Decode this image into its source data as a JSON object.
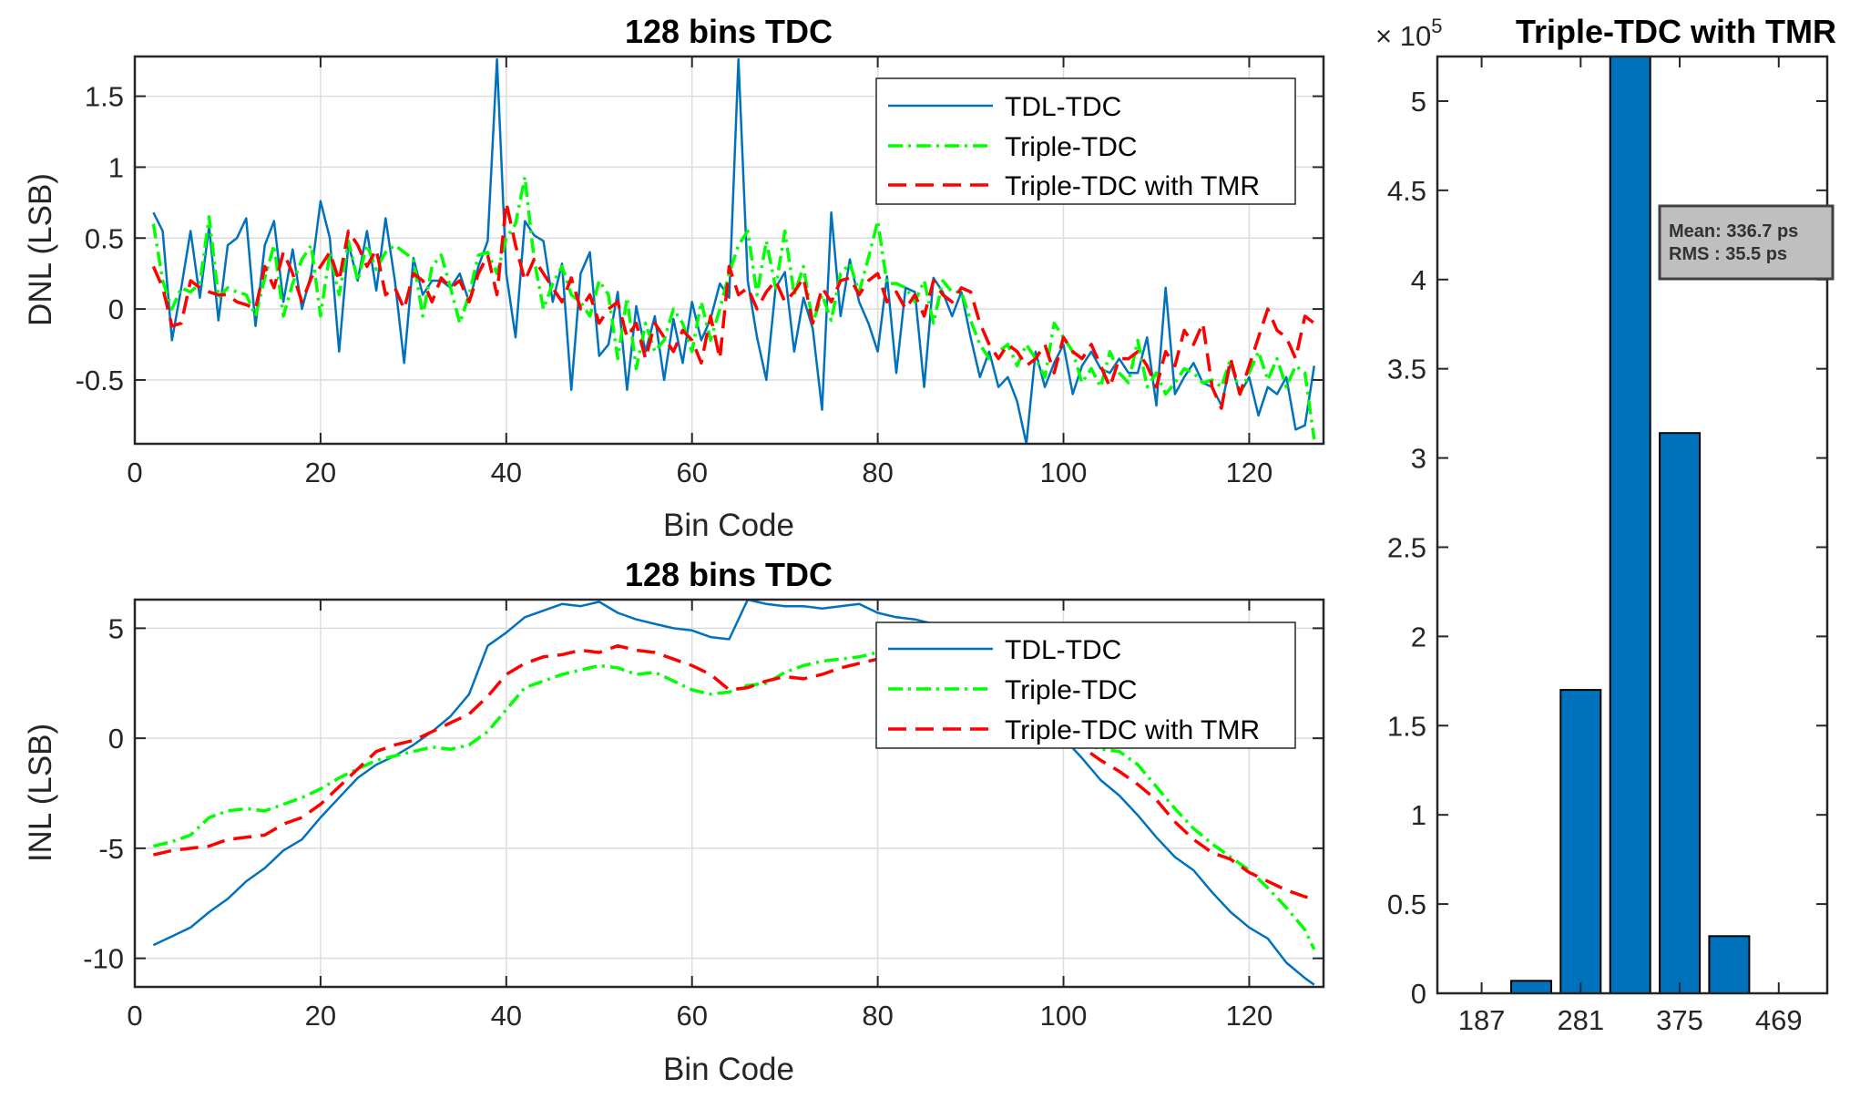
{
  "chart_data": [
    {
      "type": "line",
      "title": "128 bins TDC",
      "xlabel": "Bin Code",
      "ylabel": "DNL (LSB)",
      "xlim": [
        0,
        128
      ],
      "ylim": [
        -0.95,
        1.78
      ],
      "xticks": [
        0,
        20,
        40,
        60,
        80,
        100,
        120
      ],
      "xtick_labels": [
        "0",
        "20",
        "40",
        "60",
        "80",
        "100",
        "120"
      ],
      "yticks": [
        -0.5,
        0,
        0.5,
        1,
        1.5
      ],
      "ytick_labels": [
        "-0.5",
        "0",
        "0.5",
        "1",
        "1.5"
      ],
      "grid": true,
      "legend": "top-right",
      "x": [
        2,
        3,
        4,
        5,
        6,
        7,
        8,
        9,
        10,
        11,
        12,
        13,
        14,
        15,
        16,
        17,
        18,
        19,
        20,
        21,
        22,
        23,
        24,
        25,
        26,
        27,
        28,
        29,
        30,
        31,
        32,
        33,
        34,
        35,
        36,
        37,
        38,
        39,
        40,
        41,
        42,
        43,
        44,
        45,
        46,
        47,
        48,
        49,
        50,
        51,
        52,
        53,
        54,
        55,
        56,
        57,
        58,
        59,
        60,
        61,
        62,
        63,
        64,
        65,
        66,
        67,
        68,
        69,
        70,
        71,
        72,
        73,
        74,
        75,
        76,
        77,
        78,
        79,
        80,
        81,
        82,
        83,
        84,
        85,
        86,
        87,
        88,
        89,
        90,
        91,
        92,
        93,
        94,
        95,
        96,
        97,
        98,
        99,
        100,
        101,
        102,
        103,
        104,
        105,
        106,
        107,
        108,
        109,
        110,
        111,
        112,
        113,
        114,
        115,
        116,
        117,
        118,
        119,
        120,
        121,
        122,
        123,
        124,
        125,
        126,
        127
      ],
      "series": [
        {
          "name": "TDL-TDC",
          "color": "#0072BD",
          "style": "solid",
          "values": [
            0.68,
            0.55,
            -0.22,
            0.15,
            0.55,
            0.08,
            0.58,
            -0.08,
            0.45,
            0.5,
            0.64,
            -0.12,
            0.45,
            0.62,
            0.05,
            0.42,
            0.0,
            0.25,
            0.76,
            0.5,
            -0.3,
            0.46,
            0.2,
            0.55,
            0.13,
            0.64,
            0.2,
            -0.38,
            0.36,
            0.1,
            0.2,
            0.2,
            0.15,
            0.25,
            0.05,
            0.3,
            0.48,
            1.76,
            0.25,
            -0.2,
            0.62,
            0.52,
            0.48,
            0.05,
            0.32,
            -0.57,
            0.25,
            0.4,
            -0.33,
            -0.25,
            0.12,
            -0.57,
            0.02,
            -0.3,
            -0.05,
            -0.5,
            -0.07,
            -0.38,
            0.05,
            -0.22,
            -0.07,
            0.18,
            0.08,
            1.76,
            0.2,
            -0.2,
            -0.5,
            0.15,
            0.26,
            -0.3,
            0.08,
            -0.14,
            -0.71,
            0.68,
            -0.05,
            0.35,
            0.05,
            -0.1,
            -0.3,
            0.23,
            -0.45,
            0.15,
            0.12,
            -0.55,
            0.22,
            0.12,
            -0.05,
            0.12,
            -0.2,
            -0.48,
            -0.3,
            -0.55,
            -0.48,
            -0.65,
            -0.95,
            -0.3,
            -0.55,
            -0.38,
            -0.25,
            -0.6,
            -0.4,
            -0.3,
            -0.42,
            -0.45,
            -0.35,
            -0.45,
            -0.45,
            -0.2,
            -0.68,
            0.15,
            -0.6,
            -0.48,
            -0.38,
            -0.52,
            -0.55,
            -0.68,
            -0.38,
            -0.6,
            -0.48,
            -0.75,
            -0.55,
            -0.6,
            -0.48,
            -0.85,
            -0.82,
            -0.4
          ]
        },
        {
          "name": "Triple-TDC",
          "color": "#00FF00",
          "style": "dashdot",
          "values": [
            0.6,
            0.2,
            0.0,
            0.15,
            0.12,
            0.18,
            0.65,
            0.08,
            0.15,
            0.12,
            0.1,
            -0.05,
            0.22,
            0.45,
            -0.05,
            0.18,
            0.35,
            0.45,
            -0.05,
            0.4,
            0.1,
            0.48,
            0.2,
            0.45,
            0.28,
            0.4,
            0.45,
            0.4,
            0.35,
            -0.05,
            0.3,
            0.38,
            0.15,
            -0.1,
            0.1,
            0.38,
            0.4,
            0.25,
            0.5,
            0.6,
            0.93,
            0.35,
            0.0,
            0.18,
            0.3,
            0.1,
            0.05,
            -0.05,
            0.2,
            0.1,
            -0.35,
            0.08,
            -0.42,
            -0.1,
            -0.3,
            -0.22,
            0.0,
            -0.1,
            -0.3,
            0.05,
            -0.22,
            0.0,
            0.25,
            0.45,
            0.55,
            0.1,
            0.48,
            0.15,
            0.55,
            0.1,
            0.3,
            -0.1,
            0.1,
            -0.08,
            0.25,
            0.32,
            0.12,
            0.36,
            0.62,
            0.18,
            0.18,
            0.15,
            0.05,
            0.2,
            -0.1,
            0.2,
            0.12,
            0.12,
            -0.08,
            -0.25,
            -0.35,
            -0.3,
            -0.25,
            -0.4,
            -0.25,
            -0.35,
            -0.48,
            -0.1,
            -0.2,
            -0.3,
            -0.52,
            -0.42,
            -0.55,
            -0.3,
            -0.45,
            -0.52,
            -0.22,
            -0.55,
            -0.45,
            -0.6,
            -0.52,
            -0.42,
            -0.45,
            -0.52,
            -0.5,
            -0.55,
            -0.35,
            -0.6,
            -0.45,
            -0.3,
            -0.5,
            -0.35,
            -0.55,
            -0.4,
            -0.45,
            -0.92
          ]
        },
        {
          "name": "Triple-TDC with TMR",
          "color": "#FF0000",
          "style": "dashed",
          "values": [
            0.3,
            0.15,
            -0.12,
            -0.1,
            0.2,
            0.15,
            0.12,
            0.1,
            0.1,
            0.05,
            0.03,
            0.0,
            0.3,
            0.15,
            0.4,
            0.25,
            0.05,
            0.22,
            0.3,
            0.4,
            0.2,
            0.55,
            0.45,
            0.3,
            0.42,
            0.1,
            0.15,
            0.0,
            0.25,
            0.2,
            0.05,
            0.22,
            0.15,
            0.2,
            0.05,
            0.25,
            0.38,
            0.1,
            0.75,
            0.45,
            0.2,
            0.35,
            0.25,
            0.15,
            0.05,
            0.22,
            0.0,
            0.1,
            -0.1,
            0.0,
            0.05,
            -0.2,
            -0.1,
            -0.35,
            -0.1,
            -0.2,
            -0.3,
            -0.15,
            -0.22,
            -0.38,
            -0.05,
            -0.35,
            0.3,
            0.1,
            0.15,
            0.0,
            0.12,
            0.2,
            0.05,
            0.12,
            0.22,
            -0.1,
            0.15,
            0.05,
            0.2,
            0.22,
            0.1,
            0.2,
            0.25,
            0.05,
            0.12,
            0.0,
            0.1,
            -0.05,
            0.2,
            0.1,
            0.05,
            0.15,
            0.12,
            -0.1,
            -0.25,
            -0.35,
            -0.25,
            -0.3,
            -0.4,
            -0.35,
            -0.25,
            -0.45,
            -0.2,
            -0.3,
            -0.35,
            -0.25,
            -0.4,
            -0.55,
            -0.35,
            -0.35,
            -0.3,
            -0.4,
            -0.55,
            -0.3,
            -0.4,
            -0.15,
            -0.25,
            -0.1,
            -0.55,
            -0.7,
            -0.35,
            -0.6,
            -0.4,
            -0.2,
            0.0,
            -0.15,
            -0.2,
            -0.35,
            -0.05,
            -0.1
          ]
        }
      ]
    },
    {
      "type": "line",
      "title": "128 bins TDC",
      "xlabel": "Bin Code",
      "ylabel": "INL (LSB)",
      "xlim": [
        0,
        128
      ],
      "ylim": [
        -11.3,
        6.3
      ],
      "xticks": [
        0,
        20,
        40,
        60,
        80,
        100,
        120
      ],
      "xtick_labels": [
        "0",
        "20",
        "40",
        "60",
        "80",
        "100",
        "120"
      ],
      "yticks": [
        -10,
        -5,
        0,
        5
      ],
      "ytick_labels": [
        "-10",
        "-5",
        "0",
        "5"
      ],
      "grid": true,
      "legend": "top-right",
      "x": [
        2,
        4,
        6,
        8,
        10,
        12,
        14,
        16,
        18,
        20,
        22,
        24,
        26,
        28,
        30,
        32,
        34,
        36,
        38,
        40,
        42,
        44,
        46,
        48,
        50,
        52,
        54,
        56,
        58,
        60,
        62,
        64,
        66,
        68,
        70,
        72,
        74,
        76,
        78,
        80,
        82,
        84,
        86,
        88,
        90,
        92,
        94,
        96,
        98,
        100,
        102,
        104,
        106,
        108,
        110,
        112,
        114,
        116,
        118,
        120,
        122,
        124,
        126,
        127
      ],
      "series": [
        {
          "name": "TDL-TDC",
          "color": "#0072BD",
          "style": "solid",
          "values": [
            -9.4,
            -9.0,
            -8.6,
            -7.9,
            -7.3,
            -6.5,
            -5.9,
            -5.1,
            -4.6,
            -3.6,
            -2.7,
            -1.8,
            -1.2,
            -0.8,
            -0.3,
            0.3,
            1.0,
            2.0,
            4.2,
            4.8,
            5.5,
            5.8,
            6.1,
            6.0,
            6.2,
            5.7,
            5.4,
            5.2,
            5.0,
            4.9,
            4.6,
            4.5,
            6.3,
            6.1,
            6.0,
            6.0,
            5.9,
            6.0,
            6.1,
            5.7,
            5.5,
            5.4,
            5.2,
            4.9,
            4.5,
            4.0,
            3.1,
            2.0,
            1.2,
            0.0,
            -0.9,
            -1.9,
            -2.6,
            -3.5,
            -4.5,
            -5.4,
            -6.0,
            -7.0,
            -7.9,
            -8.6,
            -9.1,
            -10.2,
            -10.9,
            -11.2
          ]
        },
        {
          "name": "Triple-TDC",
          "color": "#00FF00",
          "style": "dashdot",
          "values": [
            -4.9,
            -4.7,
            -4.4,
            -3.6,
            -3.3,
            -3.2,
            -3.3,
            -3.0,
            -2.7,
            -2.3,
            -1.8,
            -1.4,
            -1.0,
            -0.8,
            -0.6,
            -0.4,
            -0.5,
            -0.3,
            0.3,
            1.3,
            2.3,
            2.6,
            2.9,
            3.1,
            3.3,
            3.2,
            2.9,
            3.0,
            2.6,
            2.2,
            2.0,
            2.1,
            2.4,
            2.5,
            3.0,
            3.3,
            3.5,
            3.6,
            3.7,
            3.9,
            3.8,
            3.7,
            3.5,
            3.0,
            2.7,
            2.3,
            1.9,
            1.4,
            0.8,
            0.3,
            -0.2,
            -0.5,
            -0.6,
            -1.2,
            -2.2,
            -3.2,
            -4.1,
            -4.8,
            -5.4,
            -6.0,
            -6.8,
            -7.7,
            -8.7,
            -9.6
          ]
        },
        {
          "name": "Triple-TDC with TMR",
          "color": "#FF0000",
          "style": "dashed",
          "values": [
            -5.3,
            -5.1,
            -5.0,
            -4.9,
            -4.6,
            -4.5,
            -4.4,
            -3.9,
            -3.6,
            -3.0,
            -2.2,
            -1.4,
            -0.6,
            -0.3,
            -0.1,
            0.3,
            0.7,
            1.1,
            1.9,
            2.9,
            3.4,
            3.7,
            3.8,
            4.0,
            3.9,
            4.2,
            4.0,
            3.9,
            3.6,
            3.3,
            2.9,
            2.2,
            2.3,
            2.6,
            2.8,
            2.7,
            2.9,
            3.2,
            3.4,
            3.6,
            3.7,
            3.5,
            3.2,
            2.8,
            2.4,
            2.0,
            1.5,
            1.0,
            0.6,
            0.2,
            -0.4,
            -1.0,
            -1.5,
            -2.1,
            -2.8,
            -3.8,
            -4.6,
            -5.2,
            -5.5,
            -6.1,
            -6.5,
            -6.9,
            -7.2,
            -7.3
          ]
        }
      ]
    },
    {
      "type": "bar",
      "title": "Triple-TDC with TMR",
      "exponent_label": "× 10",
      "exponent_power": "5",
      "xlim": [
        145,
        515
      ],
      "ylim": [
        0,
        5.25
      ],
      "xticks": [
        187,
        281,
        375,
        469
      ],
      "xtick_labels": [
        "187",
        "281",
        "375",
        "469"
      ],
      "yticks": [
        0,
        0.5,
        1,
        1.5,
        2,
        2.5,
        3,
        3.5,
        4,
        4.5,
        5
      ],
      "ytick_labels": [
        "0",
        "0.5",
        "1",
        "1.5",
        "2",
        "2.5",
        "3",
        "3.5",
        "4",
        "4.5",
        "5"
      ],
      "color": "#0072BD",
      "bar_width": 38,
      "x": [
        234,
        281,
        328,
        375,
        422
      ],
      "values": [
        0.07,
        1.7,
        5.25,
        3.14,
        0.32
      ],
      "grid": false,
      "annotation_lines": [
        "Mean: 336.7 ps",
        "RMS : 35.5 ps"
      ]
    }
  ]
}
